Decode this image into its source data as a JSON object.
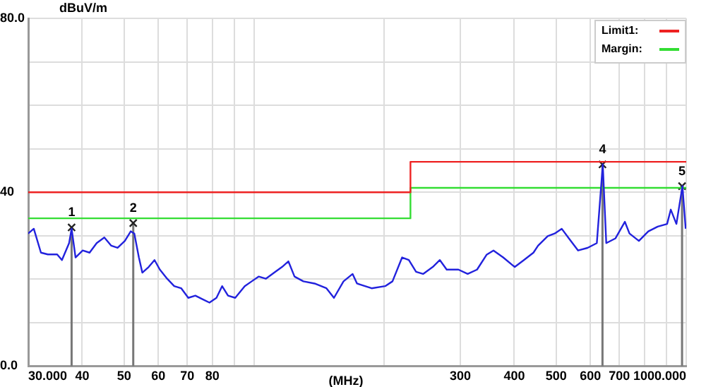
{
  "chart_data": {
    "type": "line",
    "ylabel": "dBuV/m",
    "xlabel": "(MHz)",
    "log": "x",
    "grid": true,
    "legend": "top right",
    "xlim": [
      30,
      1000
    ],
    "xticks": [
      {
        "value": 30,
        "label": "30.000"
      },
      40,
      50,
      60,
      70,
      80,
      {
        "value": 90,
        "label": null
      },
      {
        "value": 100,
        "label": null
      },
      {
        "value": 200,
        "label": null
      },
      300,
      400,
      500,
      600,
      700,
      {
        "value": 800,
        "label": null
      },
      {
        "value": 900,
        "label": null
      },
      {
        "value": 1000,
        "label": "1000.000"
      }
    ],
    "ylim": [
      0,
      80
    ],
    "yticks": [
      {
        "value": 0,
        "label": "0.0"
      },
      {
        "value": 10,
        "label": null
      },
      {
        "value": 20,
        "label": null
      },
      {
        "value": 30,
        "label": null
      },
      40,
      {
        "value": 50,
        "label": null
      },
      {
        "value": 60,
        "label": null
      },
      {
        "value": 70,
        "label": null
      },
      {
        "value": 80,
        "label": "80.0"
      }
    ],
    "series": [
      {
        "color": "#2222dd",
        "x": [
          30,
          30.9,
          32.1,
          33.3,
          35.0,
          35.9,
          37.3,
          37.8,
          38.6,
          40.1,
          41.6,
          43.2,
          45.0,
          46.7,
          48.3,
          50.2,
          51.8,
          52.8,
          54.1,
          55.1,
          57.0,
          58.8,
          60.5,
          62.9,
          65.3,
          67.8,
          70.4,
          73.1,
          75.9,
          78.8,
          81.8,
          84.3,
          87.0,
          90.4,
          95.1,
          98.7,
          102.5,
          106.4,
          112,
          116,
          120,
          124,
          130,
          138,
          147,
          153,
          161,
          169,
          173,
          187,
          201,
          209,
          220,
          228,
          237,
          246,
          259,
          269,
          279,
          297,
          312,
          328,
          345,
          358,
          377,
          401,
          421,
          443,
          454,
          478,
          496,
          515,
          535,
          562,
          591,
          621,
          641,
          653,
          686,
          721,
          739,
          777,
          817,
          859,
          903,
          921,
          949,
          980,
          997
        ],
        "values": [
          30.5,
          31.6,
          26.1,
          25.7,
          25.7,
          24.4,
          28.3,
          31.6,
          25.0,
          26.6,
          26.1,
          28.3,
          29.6,
          27.7,
          27.2,
          28.8,
          31.0,
          30.5,
          25.0,
          21.5,
          22.8,
          24.4,
          22.2,
          20.1,
          18.4,
          17.9,
          15.7,
          16.2,
          15.4,
          14.6,
          15.7,
          18.4,
          16.2,
          15.7,
          18.4,
          19.5,
          20.6,
          20.1,
          21.7,
          22.8,
          24.1,
          20.6,
          19.5,
          19.0,
          17.9,
          15.7,
          19.5,
          21.2,
          19.0,
          17.9,
          18.4,
          19.5,
          25.0,
          24.4,
          21.7,
          21.2,
          22.8,
          24.4,
          22.2,
          22.2,
          21.2,
          22.2,
          25.6,
          26.6,
          25.0,
          22.8,
          24.4,
          26.1,
          27.7,
          29.9,
          30.5,
          31.6,
          29.4,
          26.6,
          27.2,
          28.3,
          46.4,
          28.3,
          29.4,
          33.2,
          30.5,
          28.8,
          31.0,
          32.1,
          32.7,
          36.0,
          32.7,
          41.4,
          31.6
        ]
      },
      {
        "name": "Limit1:",
        "color": "#ee2222",
        "x": [
          30,
          230,
          230,
          1000
        ],
        "values": [
          40,
          40,
          47,
          47
        ]
      },
      {
        "name": "Margin:",
        "color": "#33dd33",
        "x": [
          30,
          230,
          230,
          1000
        ],
        "values": [
          34,
          34,
          41,
          41
        ]
      },
      {
        "type": "scatter",
        "marker": "cross",
        "color": "#222222",
        "x": [
          37.8,
          52.5,
          640,
          978
        ],
        "values": [
          31.9,
          32.9,
          46.4,
          41.4
        ]
      }
    ],
    "annotations": [
      {
        "text": "1",
        "x": 37.8,
        "y": 31.9
      },
      {
        "text": "2",
        "x": 52.5,
        "y": 32.9
      },
      {
        "text": "4",
        "x": 640,
        "y": 46.4
      },
      {
        "text": "5",
        "x": 978,
        "y": 41.4
      }
    ]
  }
}
